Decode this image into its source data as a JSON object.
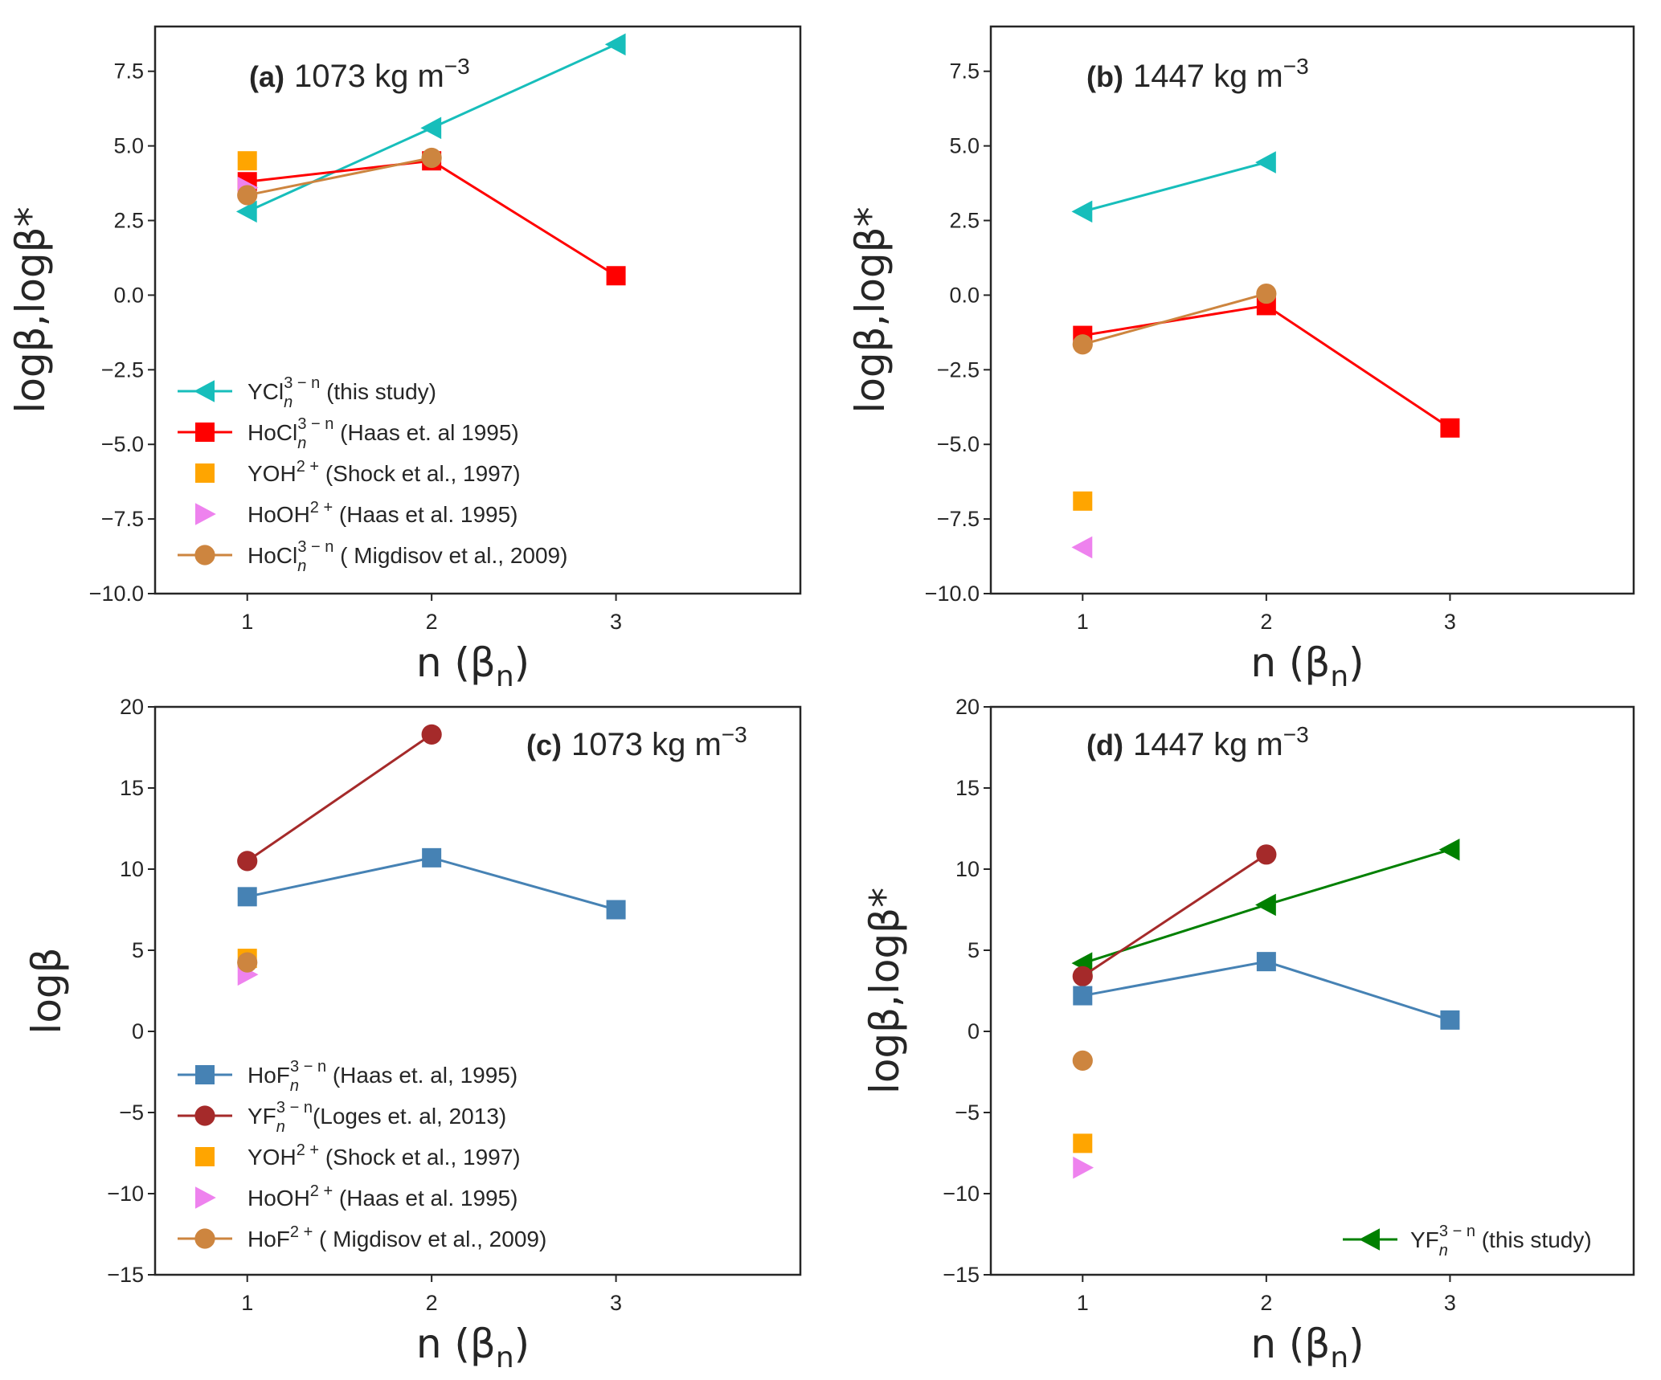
{
  "chart_data": [
    {
      "type": "line",
      "panel": "a",
      "title_tag": "(a)",
      "title": "1073 kg m",
      "title_sup": "−3",
      "xlabel": "n (β",
      "xlabel_sub": "n",
      "ylabel": "logβ,logβ*",
      "xlim": [
        0.5,
        4.0
      ],
      "ylim": [
        -10,
        9
      ],
      "xticks": [
        1,
        2,
        3
      ],
      "yticks": [
        -10.0,
        -7.5,
        -5.0,
        -2.5,
        0.0,
        2.5,
        5.0,
        7.5
      ],
      "ytick_labels": [
        "−10.0",
        "−7.5",
        "−5.0",
        "−2.5",
        "0.0",
        "2.5",
        "5.0",
        "7.5"
      ],
      "grid": false,
      "legend_placement": "lower-left",
      "series": [
        {
          "name": "YCl",
          "sub": "n",
          "sup": "3 − n",
          "suffix": " (this study)",
          "color": "#17BEBB",
          "marker": "triangle-left",
          "line": true,
          "x": [
            1,
            2,
            3
          ],
          "y": [
            2.8,
            5.6,
            8.4
          ]
        },
        {
          "name": "HoCl",
          "sub": "n",
          "sup": "3 − n",
          "suffix": " (Haas et. al 1995)",
          "color": "#FF0000",
          "marker": "square",
          "line": true,
          "x": [
            1,
            2,
            3
          ],
          "y": [
            3.8,
            4.5,
            0.65
          ]
        },
        {
          "name": "YOH",
          "sub": "",
          "sup": "2 +",
          "suffix": "  (Shock et al., 1997)",
          "color": "#FFA500",
          "marker": "square",
          "line": false,
          "x": [
            1
          ],
          "y": [
            4.5
          ]
        },
        {
          "name": "HoOH",
          "sub": "",
          "sup": "2 +",
          "suffix": "  (Haas et al. 1995)",
          "color": "#EE82EE",
          "marker": "triangle-right",
          "line": false,
          "x": [
            1
          ],
          "y": [
            3.6
          ]
        },
        {
          "name": "HoCl",
          "sub": "n",
          "sup": "3 − n",
          "suffix": " ( Migdisov et al., 2009)",
          "color": "#CD853F",
          "marker": "circle",
          "line": true,
          "x": [
            1,
            2
          ],
          "y": [
            3.35,
            4.6
          ]
        }
      ]
    },
    {
      "type": "line",
      "panel": "b",
      "title_tag": "(b)",
      "title": "1447 kg m",
      "title_sup": "−3",
      "xlabel": "n (β",
      "xlabel_sub": "n",
      "ylabel": "logβ,logβ*",
      "xlim": [
        0.5,
        4.0
      ],
      "ylim": [
        -10,
        9
      ],
      "xticks": [
        1,
        2,
        3
      ],
      "yticks": [
        -10.0,
        -7.5,
        -5.0,
        -2.5,
        0.0,
        2.5,
        5.0,
        7.5
      ],
      "ytick_labels": [
        "−10.0",
        "−7.5",
        "−5.0",
        "−2.5",
        "0.0",
        "2.5",
        "5.0",
        "7.5"
      ],
      "grid": false,
      "legend_placement": "none",
      "series": [
        {
          "name": "YCl",
          "color": "#17BEBB",
          "marker": "triangle-left",
          "line": true,
          "x": [
            1,
            2
          ],
          "y": [
            2.8,
            4.45
          ]
        },
        {
          "name": "HoCl (Haas)",
          "color": "#FF0000",
          "marker": "square",
          "line": true,
          "x": [
            1,
            2,
            3
          ],
          "y": [
            -1.35,
            -0.35,
            -4.45
          ]
        },
        {
          "name": "HoCl (Migdisov)",
          "color": "#CD853F",
          "marker": "circle",
          "line": true,
          "x": [
            1,
            2
          ],
          "y": [
            -1.65,
            0.05
          ]
        },
        {
          "name": "YOH",
          "color": "#FFA500",
          "marker": "square",
          "line": false,
          "x": [
            1
          ],
          "y": [
            -6.9
          ]
        },
        {
          "name": "HoOH",
          "color": "#EE82EE",
          "marker": "triangle-left",
          "line": false,
          "x": [
            1
          ],
          "y": [
            -8.45
          ]
        }
      ]
    },
    {
      "type": "line",
      "panel": "c",
      "title_tag": "(c)",
      "title": "1073 kg m",
      "title_sup": "−3",
      "xlabel": "n (β",
      "xlabel_sub": "n",
      "ylabel": "logβ",
      "xlim": [
        0.5,
        4.0
      ],
      "ylim": [
        -15,
        20
      ],
      "xticks": [
        1,
        2,
        3
      ],
      "yticks": [
        -15,
        -10,
        -5,
        0,
        5,
        10,
        15,
        20
      ],
      "ytick_labels": [
        "−15",
        "−10",
        "−5",
        "0",
        "5",
        "10",
        "15",
        "20"
      ],
      "grid": false,
      "legend_placement": "lower-left",
      "series": [
        {
          "name": "HoF",
          "sub": "n",
          "sup": "3 − n",
          "suffix": " (Haas et. al, 1995)",
          "color": "#4682B4",
          "marker": "square",
          "line": true,
          "x": [
            1,
            2,
            3
          ],
          "y": [
            8.3,
            10.7,
            7.5
          ]
        },
        {
          "name": "YF",
          "sub": "n",
          "sup": "3 − n",
          "suffix": "(Loges et. al, 2013)",
          "color": "#A52A2A",
          "marker": "circle",
          "line": true,
          "x": [
            1,
            2
          ],
          "y": [
            10.5,
            18.3
          ]
        },
        {
          "name": "YOH",
          "sub": "",
          "sup": "2 +",
          "suffix": "  (Shock et al., 1997)",
          "color": "#FFA500",
          "marker": "square",
          "line": false,
          "x": [
            1
          ],
          "y": [
            4.5
          ]
        },
        {
          "name": "HoOH",
          "sub": "",
          "sup": "2 +",
          "suffix": "  (Haas et al. 1995)",
          "color": "#EE82EE",
          "marker": "triangle-right",
          "line": false,
          "x": [
            1
          ],
          "y": [
            3.5
          ]
        },
        {
          "name": "HoF",
          "sub": "",
          "sup": "2 +",
          "suffix": "  ( Migdisov et al., 2009)",
          "color": "#CD853F",
          "marker": "circle",
          "line": true,
          "x": [
            1
          ],
          "y": [
            4.25
          ]
        }
      ]
    },
    {
      "type": "line",
      "panel": "d",
      "title_tag": "(d)",
      "title": "1447 kg m",
      "title_sup": "−3",
      "xlabel": "n (β",
      "xlabel_sub": "n",
      "ylabel": "logβ,logβ*",
      "xlim": [
        0.5,
        4.0
      ],
      "ylim": [
        -15,
        20
      ],
      "xticks": [
        1,
        2,
        3
      ],
      "yticks": [
        -15,
        -10,
        -5,
        0,
        5,
        10,
        15,
        20
      ],
      "ytick_labels": [
        "−15",
        "−10",
        "−5",
        "0",
        "5",
        "10",
        "15",
        "20"
      ],
      "grid": false,
      "legend_placement": "lower-right",
      "series": [
        {
          "name": "YF",
          "sub": "n",
          "sup": "3 − n",
          "suffix": " (this study)",
          "color": "#008000",
          "marker": "triangle-left",
          "line": true,
          "legend": true,
          "x": [
            1,
            2,
            3
          ],
          "y": [
            4.2,
            7.8,
            11.2
          ]
        },
        {
          "name": "YF (Loges)",
          "color": "#A52A2A",
          "marker": "circle",
          "line": true,
          "legend": false,
          "x": [
            1,
            2
          ],
          "y": [
            3.4,
            10.9
          ]
        },
        {
          "name": "HoF (Haas)",
          "color": "#4682B4",
          "marker": "square",
          "line": true,
          "legend": false,
          "x": [
            1,
            2,
            3
          ],
          "y": [
            2.2,
            4.3,
            0.7
          ]
        },
        {
          "name": "HoF (Migdisov)",
          "color": "#CD853F",
          "marker": "circle",
          "line": false,
          "legend": false,
          "x": [
            1
          ],
          "y": [
            -1.8
          ]
        },
        {
          "name": "YOH",
          "color": "#FFA500",
          "marker": "square",
          "line": false,
          "legend": false,
          "x": [
            1
          ],
          "y": [
            -6.9
          ]
        },
        {
          "name": "HoOH",
          "color": "#EE82EE",
          "marker": "triangle-right",
          "line": false,
          "legend": false,
          "x": [
            1
          ],
          "y": [
            -8.4
          ]
        }
      ]
    }
  ]
}
